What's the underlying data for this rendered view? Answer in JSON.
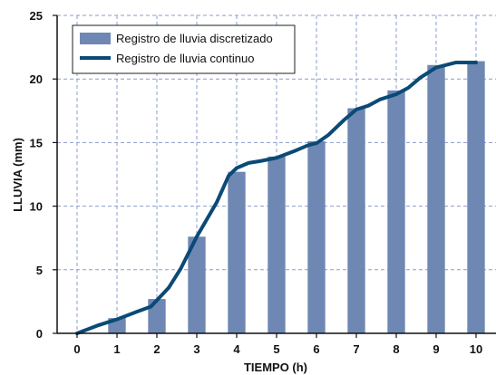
{
  "chart_data": {
    "type": "bar",
    "title": "",
    "xlabel": "TIEMPO (h)",
    "ylabel": "LLUVIA (mm)",
    "xlim": [
      -0.5,
      10.5
    ],
    "ylim": [
      0,
      25
    ],
    "x_ticks": [
      "0",
      "1",
      "2",
      "3",
      "4",
      "5",
      "6",
      "7",
      "8",
      "9",
      "10"
    ],
    "y_ticks": [
      "0",
      "5",
      "10",
      "15",
      "20",
      "25"
    ],
    "grid": true,
    "legend_position": "top-left",
    "series": [
      {
        "name": "Registro de lluvia discretizado",
        "kind": "bar",
        "color": "#6f87b3",
        "x": [
          1,
          2,
          3,
          4,
          5,
          6,
          7,
          8,
          9,
          10
        ],
        "values": [
          1.2,
          2.7,
          7.6,
          12.7,
          13.9,
          15.1,
          17.7,
          19.1,
          21.1,
          21.4
        ]
      },
      {
        "name": "Registro de lluvia continuo",
        "kind": "line",
        "color": "#0b4a76",
        "x": [
          0,
          0.5,
          1,
          1.5,
          1.85,
          2,
          2.3,
          2.6,
          3,
          3.5,
          3.8,
          4,
          4.3,
          4.6,
          5,
          5.5,
          5.8,
          6,
          6.3,
          6.7,
          7,
          7.3,
          7.6,
          8,
          8.3,
          8.6,
          9,
          9.5,
          10
        ],
        "values": [
          0,
          0.6,
          1.1,
          1.7,
          2.1,
          2.6,
          3.6,
          5.1,
          7.6,
          10.3,
          12.4,
          13.0,
          13.4,
          13.55,
          13.8,
          14.4,
          14.8,
          14.95,
          15.6,
          16.8,
          17.6,
          17.9,
          18.4,
          18.8,
          19.3,
          20.1,
          20.9,
          21.3,
          21.3
        ]
      }
    ]
  },
  "legend": {
    "bar_label": "Registro de lluvia discretizado",
    "line_label": "Registro de lluvia continuo"
  },
  "colors": {
    "bar": "#6f87b3",
    "line": "#0b4a76",
    "grid": "#8a9ccc"
  }
}
